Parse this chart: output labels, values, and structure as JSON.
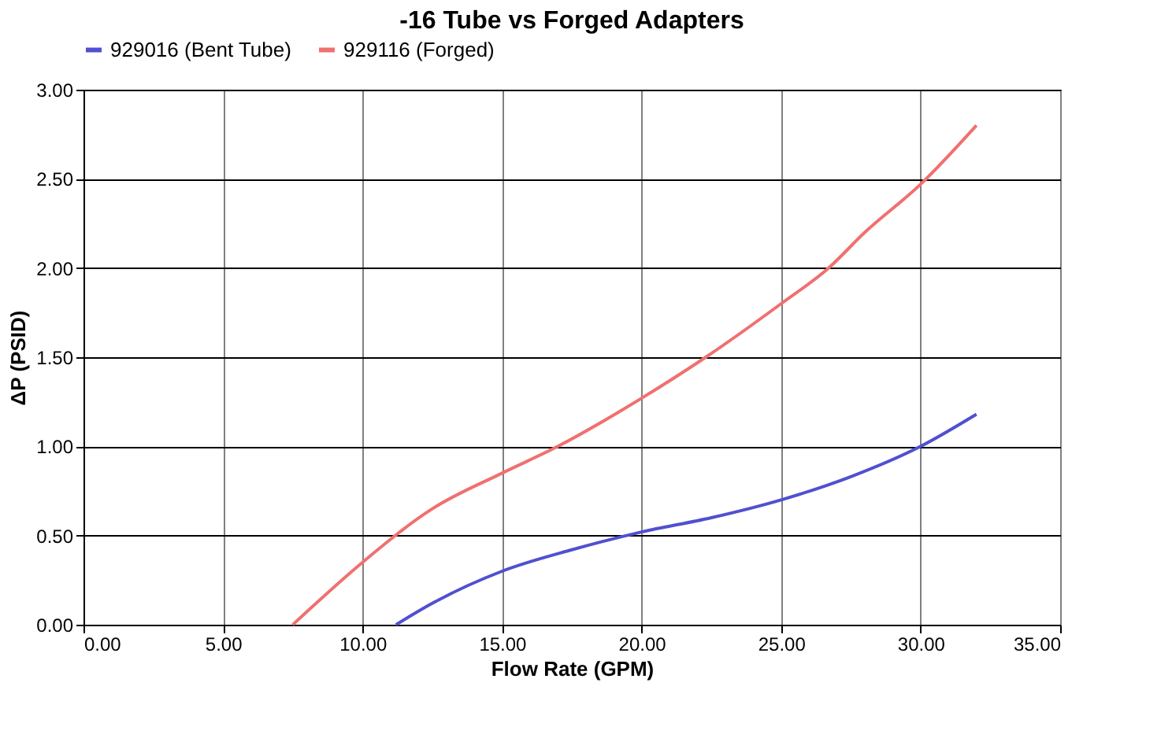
{
  "chart_data": {
    "type": "line",
    "title": "-16 Tube vs Forged Adapters",
    "xlabel": "Flow Rate (GPM)",
    "ylabel": "ΔP (PSID)",
    "xlim": [
      0,
      35
    ],
    "ylim": [
      0,
      3
    ],
    "xticks": [
      {
        "value": 0,
        "label": "0.00"
      },
      {
        "value": 5,
        "label": "5.00"
      },
      {
        "value": 10,
        "label": "10.00"
      },
      {
        "value": 15,
        "label": "15.00"
      },
      {
        "value": 20,
        "label": "20.00"
      },
      {
        "value": 25,
        "label": "25.00"
      },
      {
        "value": 30,
        "label": "30.00"
      },
      {
        "value": 35,
        "label": "35.00"
      }
    ],
    "yticks": [
      {
        "value": 0,
        "label": "0.00"
      },
      {
        "value": 0.5,
        "label": "0.50"
      },
      {
        "value": 1,
        "label": "1.00"
      },
      {
        "value": 1.5,
        "label": "1.50"
      },
      {
        "value": 2,
        "label": "2.00"
      },
      {
        "value": 2.5,
        "label": "2.50"
      },
      {
        "value": 3,
        "label": "3.00"
      }
    ],
    "grid": true,
    "legend": "top",
    "marker": "none",
    "line_style": "solid",
    "series": [
      {
        "name": "929016 (Bent Tube)",
        "color": "#5050d0",
        "x": [
          11.2,
          12.5,
          15,
          17.5,
          20,
          22.5,
          25,
          27.5,
          30,
          32
        ],
        "values": [
          0,
          0.12,
          0.3,
          0.42,
          0.52,
          0.6,
          0.7,
          0.83,
          1.0,
          1.18
        ]
      },
      {
        "name": "929116  (Forged)",
        "color": "#f07070",
        "x": [
          7.5,
          10,
          12.5,
          15,
          17,
          20,
          22.3,
          25,
          26.7,
          28,
          30,
          32
        ],
        "values": [
          0,
          0.35,
          0.65,
          0.85,
          1.0,
          1.27,
          1.5,
          1.8,
          2.0,
          2.2,
          2.47,
          2.8
        ]
      }
    ]
  }
}
